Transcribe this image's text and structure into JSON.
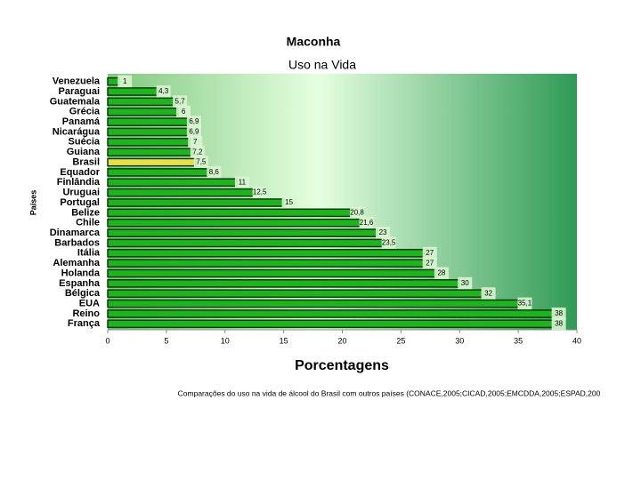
{
  "chart_data": {
    "type": "hbar",
    "title": "Maconha",
    "subtitle": "Uso na Vida",
    "y_label": "Países",
    "x_label": "Porcentagens",
    "note": "Comparações do uso na vida de álcool do Brasil com outros países (CONACE,2005;CICAD,2005;EMCDDA,2005;ESPAD,200",
    "categories": [
      "Venezuela",
      "Paraguai",
      "Guatemala",
      "Grécia",
      "Panamá",
      "Nicarágua",
      "Suécia",
      "Guiana",
      "Brasil",
      "Equador",
      "Finlândia",
      "Uruguai",
      "Portugal",
      "Belize",
      "Chile",
      "Dinamarca",
      "Barbados",
      "Itália",
      "Alemanha",
      "Holanda",
      "Espanha",
      "Bélgica",
      "EUA",
      "Reino",
      "França"
    ],
    "values": [
      1,
      4.3,
      5.7,
      6,
      6.9,
      6.9,
      7,
      7.2,
      7.5,
      8.6,
      11,
      12.5,
      15,
      20.8,
      21.6,
      23,
      23.5,
      27,
      27,
      28,
      30,
      32,
      35.1,
      38,
      38
    ],
    "value_labels": [
      "1",
      "4,3",
      "5,7",
      "6",
      "6,9",
      "6,9",
      "7",
      "7,2",
      "7,5",
      "8,6",
      "11",
      "12,5",
      "15",
      "20,8",
      "21,6",
      "23",
      "23,5",
      "27",
      "27",
      "28",
      "30",
      "32",
      "35,1",
      "38",
      "38"
    ],
    "colors": [
      "#1fb31f",
      "#1fb31f",
      "#1fb31f",
      "#1fb31f",
      "#1fb31f",
      "#1fb31f",
      "#1fb31f",
      "#1fb31f",
      "#e8e04a",
      "#1fb31f",
      "#1fb31f",
      "#1fb31f",
      "#1fb31f",
      "#1fb31f",
      "#1fb31f",
      "#1fb31f",
      "#1fb31f",
      "#1fb31f",
      "#1fb31f",
      "#1fb31f",
      "#1fb31f",
      "#1fb31f",
      "#1fb31f",
      "#1fb31f",
      "#1fb31f"
    ],
    "xlim": [
      0,
      40
    ],
    "xticks": [
      0,
      5,
      10,
      15,
      20,
      25,
      30,
      35,
      40
    ]
  }
}
